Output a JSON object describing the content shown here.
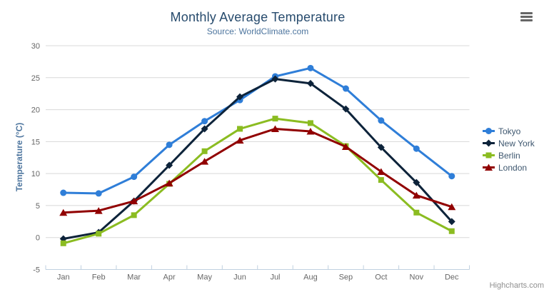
{
  "chart": {
    "title": "Monthly Average Temperature",
    "subtitle": "Source: WorldClimate.com",
    "y_axis_title": "Temperature (°C)",
    "credits": "Highcharts.com"
  },
  "icons": {
    "export_menu": "hamburger-icon"
  },
  "style": {
    "grid_color": "#d8d8d8",
    "axis_line_color": "#c0d0e0",
    "tick_label_color": "#666666",
    "title_color": "#274b6d",
    "subtitle_color": "#4d759e",
    "legend_text_color": "#3e576f"
  },
  "chart_data": {
    "type": "line",
    "title": "Monthly Average Temperature",
    "subtitle": "Source: WorldClimate.com",
    "xlabel": "",
    "ylabel": "Temperature (°C)",
    "ylim": [
      -5,
      30
    ],
    "y_ticks": [
      -5,
      0,
      5,
      10,
      15,
      20,
      25,
      30
    ],
    "grid": true,
    "legend_position": "right",
    "categories": [
      "Jan",
      "Feb",
      "Mar",
      "Apr",
      "May",
      "Jun",
      "Jul",
      "Aug",
      "Sep",
      "Oct",
      "Nov",
      "Dec"
    ],
    "series": [
      {
        "name": "Tokyo",
        "color": "#2f7ed8",
        "marker": "circle",
        "values": [
          7.0,
          6.9,
          9.5,
          14.5,
          18.2,
          21.5,
          25.2,
          26.5,
          23.3,
          18.3,
          13.9,
          9.6
        ]
      },
      {
        "name": "New York",
        "color": "#0d233a",
        "marker": "diamond",
        "values": [
          -0.2,
          0.8,
          5.7,
          11.3,
          17.0,
          22.0,
          24.8,
          24.1,
          20.1,
          14.1,
          8.6,
          2.5
        ]
      },
      {
        "name": "Berlin",
        "color": "#8bbc21",
        "marker": "square",
        "values": [
          -0.9,
          0.6,
          3.5,
          8.4,
          13.5,
          17.0,
          18.6,
          17.9,
          14.3,
          9.0,
          3.9,
          1.0
        ]
      },
      {
        "name": "London",
        "color": "#910000",
        "marker": "triangle",
        "values": [
          3.9,
          4.2,
          5.7,
          8.5,
          11.9,
          15.2,
          17.0,
          16.6,
          14.2,
          10.3,
          6.6,
          4.8
        ]
      }
    ]
  }
}
